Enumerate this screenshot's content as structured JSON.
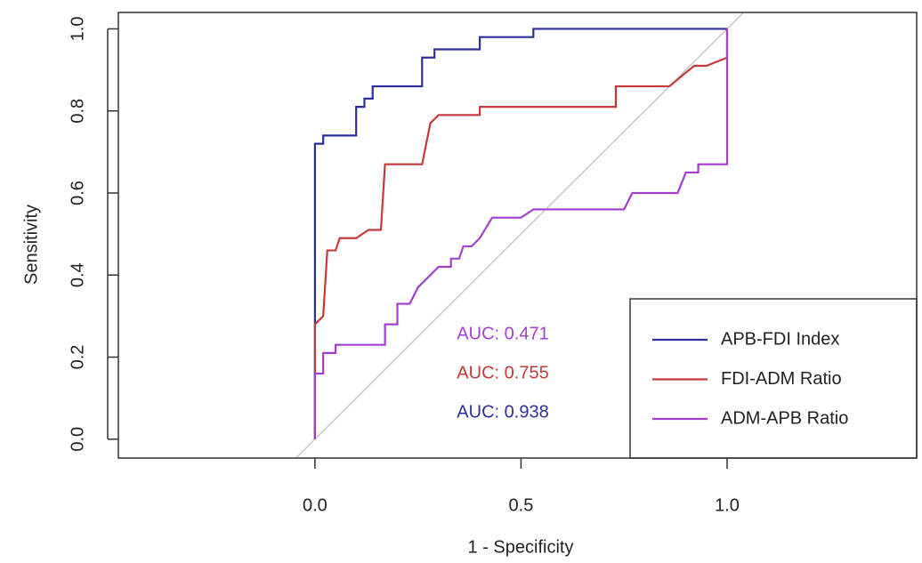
{
  "chart_data": {
    "type": "line",
    "xlabel": "1 - Specificity",
    "ylabel": "Sensitivity",
    "xlim": [
      -0.477,
      1.46
    ],
    "ylim": [
      -0.046,
      1.04
    ],
    "xticks": [
      {
        "value": 0,
        "label": "0.0"
      },
      0.5,
      {
        "value": 1,
        "label": "1.0"
      }
    ],
    "yticks": [
      {
        "value": 0,
        "label": "0.0"
      },
      0.2,
      0.4,
      0.6,
      0.8,
      {
        "value": 1,
        "label": "1.0"
      }
    ],
    "diagonal": true,
    "diagonal_color": "#c8c8c8",
    "legend": "bottom-right",
    "series": [
      {
        "name": "APB-FDI Index",
        "color": "#2e2e9a",
        "x": [
          0,
          0,
          0.02,
          0.02,
          0.1,
          0.1,
          0.12,
          0.12,
          0.14,
          0.14,
          0.26,
          0.26,
          0.29,
          0.29,
          0.4,
          0.4,
          0.53,
          0.53,
          1
        ],
        "values": [
          0,
          0.72,
          0.72,
          0.74,
          0.74,
          0.81,
          0.81,
          0.83,
          0.83,
          0.86,
          0.86,
          0.93,
          0.93,
          0.95,
          0.95,
          0.98,
          0.98,
          1,
          1
        ]
      },
      {
        "name": "FDI-ADM Ratio",
        "color": "#c43a3a",
        "x": [
          0,
          0,
          0.02,
          0.03,
          0.05,
          0.06,
          0.1,
          0.13,
          0.16,
          0.17,
          0.26,
          0.28,
          0.3,
          0.4,
          0.4,
          0.73,
          0.73,
          0.86,
          0.92,
          0.95,
          1,
          1
        ],
        "values": [
          0,
          0.28,
          0.3,
          0.46,
          0.46,
          0.49,
          0.49,
          0.51,
          0.51,
          0.67,
          0.67,
          0.77,
          0.79,
          0.79,
          0.81,
          0.81,
          0.86,
          0.86,
          0.91,
          0.91,
          0.93,
          1
        ]
      },
      {
        "name": "ADM-APB Ratio",
        "color": "#a23fd0",
        "x": [
          0,
          0,
          0.02,
          0.02,
          0.05,
          0.05,
          0.17,
          0.17,
          0.2,
          0.2,
          0.23,
          0.25,
          0.3,
          0.33,
          0.33,
          0.35,
          0.36,
          0.38,
          0.4,
          0.43,
          0.5,
          0.53,
          0.75,
          0.77,
          0.88,
          0.9,
          0.93,
          0.93,
          1,
          1
        ],
        "values": [
          0,
          0.16,
          0.16,
          0.21,
          0.21,
          0.23,
          0.23,
          0.28,
          0.28,
          0.33,
          0.33,
          0.37,
          0.42,
          0.42,
          0.44,
          0.44,
          0.47,
          0.47,
          0.49,
          0.54,
          0.54,
          0.56,
          0.56,
          0.6,
          0.6,
          0.65,
          0.65,
          0.67,
          0.67,
          1
        ]
      }
    ],
    "annotations": [
      {
        "text": "AUC: 0.471",
        "color": "#a23fd0"
      },
      {
        "text": "AUC: 0.755",
        "color": "#c43a3a"
      },
      {
        "text": "AUC: 0.938",
        "color": "#2e2e9a"
      }
    ]
  }
}
